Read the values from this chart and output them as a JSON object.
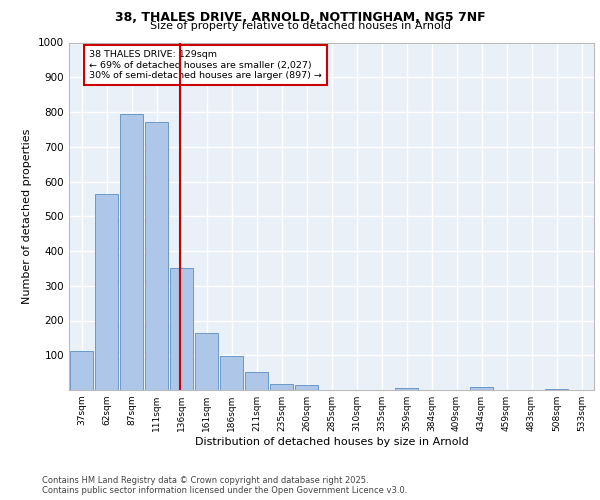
{
  "title_line1": "38, THALES DRIVE, ARNOLD, NOTTINGHAM, NG5 7NF",
  "title_line2": "Size of property relative to detached houses in Arnold",
  "xlabel": "Distribution of detached houses by size in Arnold",
  "ylabel": "Number of detached properties",
  "categories": [
    "37sqm",
    "62sqm",
    "87sqm",
    "111sqm",
    "136sqm",
    "161sqm",
    "186sqm",
    "211sqm",
    "235sqm",
    "260sqm",
    "285sqm",
    "310sqm",
    "335sqm",
    "359sqm",
    "384sqm",
    "409sqm",
    "434sqm",
    "459sqm",
    "483sqm",
    "508sqm",
    "533sqm"
  ],
  "values": [
    113,
    563,
    793,
    770,
    350,
    165,
    97,
    52,
    18,
    13,
    0,
    0,
    0,
    5,
    0,
    0,
    8,
    0,
    0,
    3,
    0
  ],
  "bar_color": "#aec6e8",
  "bar_edge_color": "#5a8fc2",
  "vline_color": "#cc0000",
  "annotation_text": "38 THALES DRIVE: 129sqm\n← 69% of detached houses are smaller (2,027)\n30% of semi-detached houses are larger (897) →",
  "annotation_box_color": "#cc0000",
  "background_color": "#eaf0f8",
  "grid_color": "#ffffff",
  "ylim": [
    0,
    1000
  ],
  "yticks": [
    0,
    100,
    200,
    300,
    400,
    500,
    600,
    700,
    800,
    900,
    1000
  ],
  "footer_line1": "Contains HM Land Registry data © Crown copyright and database right 2025.",
  "footer_line2": "Contains public sector information licensed under the Open Government Licence v3.0."
}
